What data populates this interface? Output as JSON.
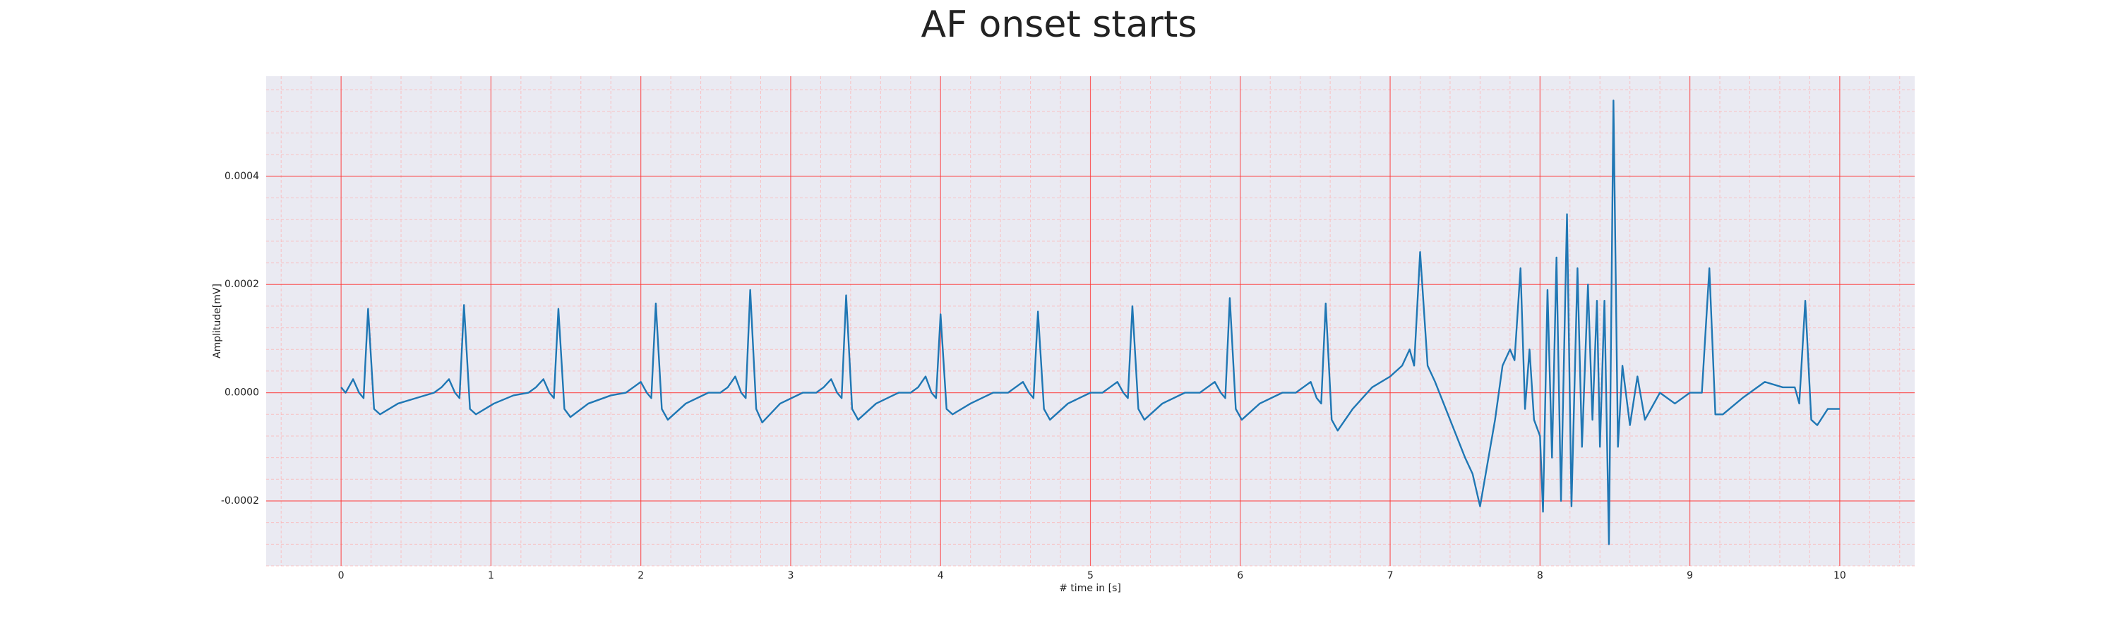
{
  "chart_data": {
    "type": "line",
    "title": "AF onset starts",
    "x_label": "# time in [s]",
    "y_label": "Amplitude[mV]",
    "color": "#1f77b4",
    "grid": true,
    "minor_grid": true,
    "xlim": [
      -0.5,
      10.5
    ],
    "ylim": [
      -0.00032,
      0.000585
    ],
    "xticks": [
      0,
      1,
      2,
      3,
      4,
      5,
      6,
      7,
      8,
      9,
      10
    ],
    "yticks": [
      {
        "value": -0.0002,
        "label": "-0.0002"
      },
      {
        "value": 0,
        "label": "0.0000"
      },
      {
        "value": 0.0002,
        "label": "0.0002"
      },
      {
        "value": 0.0004,
        "label": "0.0004"
      }
    ],
    "x": [
      0,
      0.03,
      0.08,
      0.12,
      0.15,
      0.18,
      0.22,
      0.26,
      0.38,
      0.5,
      0.62,
      0.67,
      0.72,
      0.76,
      0.79,
      0.82,
      0.86,
      0.9,
      1.02,
      1.15,
      1.25,
      1.3,
      1.35,
      1.39,
      1.42,
      1.45,
      1.49,
      1.53,
      1.65,
      1.8,
      1.9,
      1.95,
      2.0,
      2.04,
      2.07,
      2.1,
      2.14,
      2.18,
      2.3,
      2.45,
      2.53,
      2.58,
      2.63,
      2.67,
      2.7,
      2.73,
      2.77,
      2.81,
      2.93,
      3.08,
      3.17,
      3.22,
      3.27,
      3.31,
      3.34,
      3.37,
      3.41,
      3.45,
      3.57,
      3.72,
      3.8,
      3.85,
      3.9,
      3.94,
      3.97,
      4.0,
      4.04,
      4.08,
      4.2,
      4.35,
      4.45,
      4.5,
      4.55,
      4.59,
      4.62,
      4.65,
      4.69,
      4.73,
      4.85,
      5.0,
      5.08,
      5.13,
      5.18,
      5.22,
      5.25,
      5.28,
      5.32,
      5.36,
      5.48,
      5.63,
      5.73,
      5.78,
      5.83,
      5.87,
      5.9,
      5.93,
      5.97,
      6.01,
      6.13,
      6.28,
      6.37,
      6.42,
      6.47,
      6.51,
      6.54,
      6.57,
      6.61,
      6.65,
      6.75,
      6.88,
      7.0,
      7.08,
      7.13,
      7.16,
      7.2,
      7.25,
      7.3,
      7.4,
      7.5,
      7.55,
      7.6,
      7.65,
      7.7,
      7.75,
      7.8,
      7.83,
      7.87,
      7.9,
      7.93,
      7.96,
      8.0,
      8.02,
      8.05,
      8.08,
      8.11,
      8.14,
      8.18,
      8.21,
      8.25,
      8.28,
      8.32,
      8.35,
      8.38,
      8.4,
      8.43,
      8.46,
      8.49,
      8.52,
      8.55,
      8.6,
      8.65,
      8.7,
      8.8,
      8.9,
      9.0,
      9.08,
      9.13,
      9.17,
      9.22,
      9.35,
      9.5,
      9.62,
      9.7,
      9.73,
      9.77,
      9.81,
      9.85,
      9.92,
      10.0
    ],
    "values": [
      1e-05,
      0,
      2.5e-05,
      0,
      -1e-05,
      0.000155,
      -3e-05,
      -4e-05,
      -2e-05,
      -1e-05,
      0,
      1e-05,
      2.5e-05,
      0,
      -1e-05,
      0.000162,
      -3e-05,
      -4e-05,
      -2e-05,
      -5e-06,
      0,
      1e-05,
      2.5e-05,
      0,
      -1e-05,
      0.000155,
      -3e-05,
      -4.5e-05,
      -2e-05,
      -5e-06,
      0,
      1e-05,
      2e-05,
      0,
      -1e-05,
      0.000165,
      -3e-05,
      -5e-05,
      -2e-05,
      0,
      0,
      1e-05,
      3e-05,
      0,
      -1e-05,
      0.00019,
      -3e-05,
      -5.5e-05,
      -2e-05,
      0,
      0,
      1e-05,
      2.5e-05,
      0,
      -1e-05,
      0.00018,
      -3e-05,
      -5e-05,
      -2e-05,
      0,
      0,
      1e-05,
      3e-05,
      0,
      -1e-05,
      0.000145,
      -3e-05,
      -4e-05,
      -2e-05,
      0,
      0,
      1e-05,
      2e-05,
      0,
      -1e-05,
      0.00015,
      -3e-05,
      -5e-05,
      -2e-05,
      0,
      0,
      1e-05,
      2e-05,
      0,
      -1e-05,
      0.00016,
      -3e-05,
      -5e-05,
      -2e-05,
      0,
      0,
      1e-05,
      2e-05,
      0,
      -1e-05,
      0.000175,
      -3e-05,
      -5e-05,
      -2e-05,
      0,
      0,
      1e-05,
      2e-05,
      -1e-05,
      -2e-05,
      0.000165,
      -5e-05,
      -7e-05,
      -3e-05,
      1e-05,
      3e-05,
      5e-05,
      8e-05,
      5e-05,
      0.00026,
      5e-05,
      2e-05,
      -5e-05,
      -0.00012,
      -0.00015,
      -0.00021,
      -0.00013,
      -5e-05,
      5e-05,
      8e-05,
      6e-05,
      0.00023,
      -3e-05,
      8e-05,
      -5e-05,
      -8e-05,
      -0.00022,
      0.00019,
      -0.00012,
      0.00025,
      -0.0002,
      0.00033,
      -0.00021,
      0.00023,
      -0.0001,
      0.0002,
      -5e-05,
      0.00017,
      -0.0001,
      0.00017,
      -0.00028,
      0.00054,
      -0.0001,
      5e-05,
      -6e-05,
      3e-05,
      -5e-05,
      0,
      -2e-05,
      0,
      0,
      0.00023,
      -4e-05,
      -4e-05,
      -1e-05,
      2e-05,
      1e-05,
      1e-05,
      -2e-05,
      0.00017,
      -5e-05,
      -6e-05,
      -3e-05,
      -3e-05
    ]
  }
}
